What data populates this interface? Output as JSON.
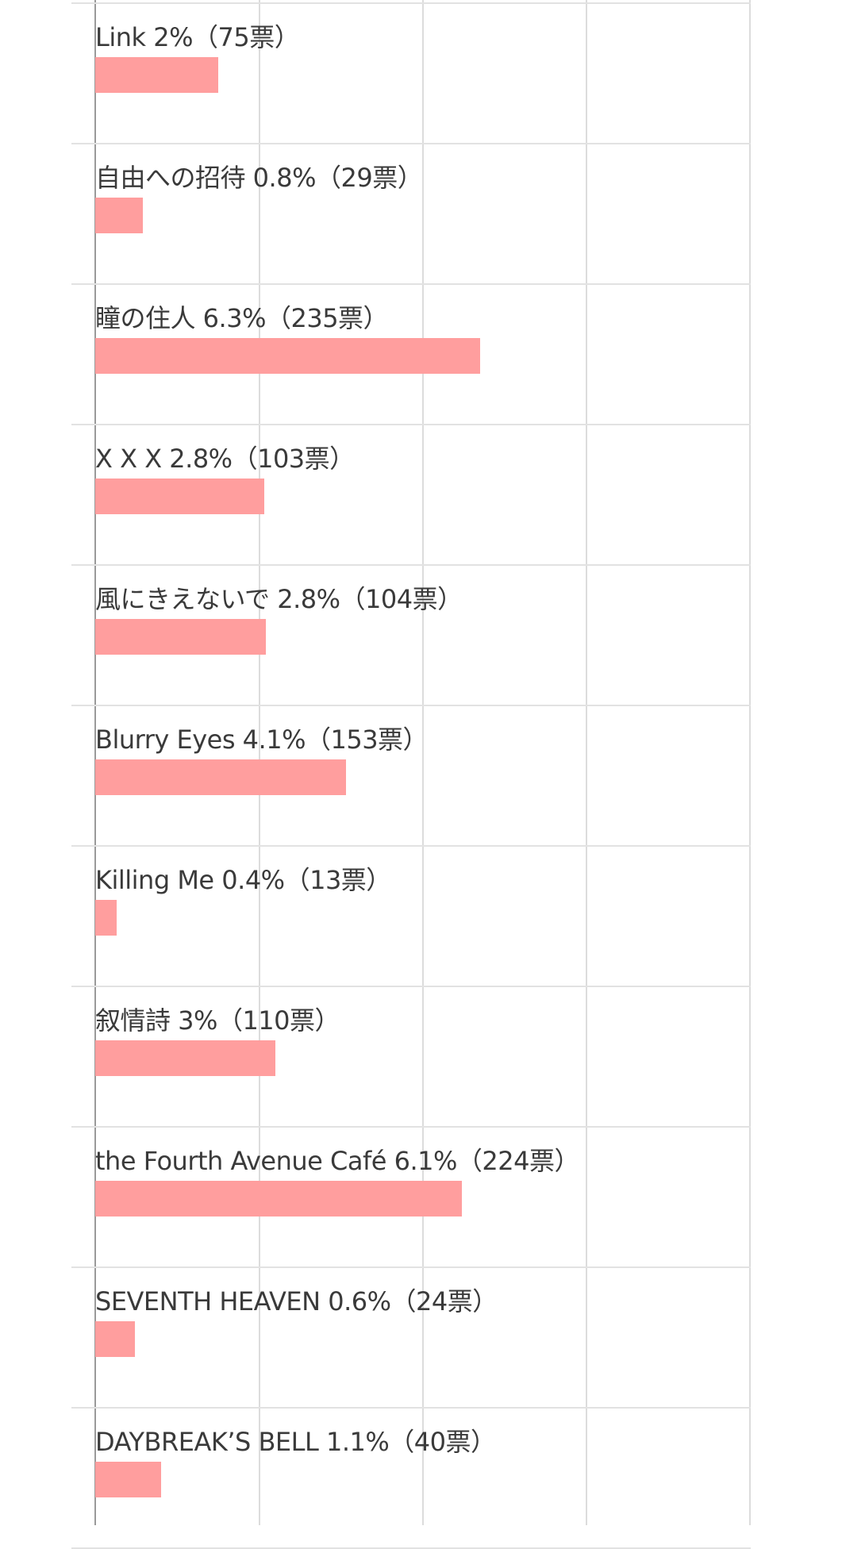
{
  "chart_data": {
    "type": "bar",
    "orientation": "horizontal",
    "grid": true,
    "colors": {
      "bar": "#ff9e9e",
      "grid": "#dcdcdc",
      "axis": "#9a9a9a",
      "text": "#3a3a3a"
    },
    "series": [
      {
        "values": [
          75,
          29,
          235,
          103,
          104,
          153,
          13,
          110,
          224,
          24,
          40
        ]
      }
    ],
    "rows": [
      {
        "label": "Link 2%（75票）",
        "category": "Link",
        "percent": 2,
        "votes": 75
      },
      {
        "label": "自由への招待 0.8%（29票）",
        "category": "自由への招待",
        "percent": 0.8,
        "votes": 29
      },
      {
        "label": "瞳の住人 6.3%（235票）",
        "category": "瞳の住人",
        "percent": 6.3,
        "votes": 235
      },
      {
        "label": "X X X 2.8%（103票）",
        "category": "X X X",
        "percent": 2.8,
        "votes": 103
      },
      {
        "label": "風にきえないで 2.8%（104票）",
        "category": "風にきえないで",
        "percent": 2.8,
        "votes": 104
      },
      {
        "label": "Blurry Eyes 4.1%（153票）",
        "category": "Blurry Eyes",
        "percent": 4.1,
        "votes": 153
      },
      {
        "label": "Killing Me 0.4%（13票）",
        "category": "Killing Me",
        "percent": 0.4,
        "votes": 13
      },
      {
        "label": "叙情詩 3%（110票）",
        "category": "叙情詩",
        "percent": 3,
        "votes": 110
      },
      {
        "label": "the Fourth Avenue Café 6.1%（224票）",
        "category": "the Fourth Avenue Café",
        "percent": 6.1,
        "votes": 224
      },
      {
        "label": "SEVENTH HEAVEN 0.6%（24票）",
        "category": "SEVENTH HEAVEN",
        "percent": 0.6,
        "votes": 24
      },
      {
        "label": "DAYBREAK’S BELL 1.1%（40票）",
        "category": "DAYBREAK’S BELL",
        "percent": 1.1,
        "votes": 40
      }
    ]
  }
}
